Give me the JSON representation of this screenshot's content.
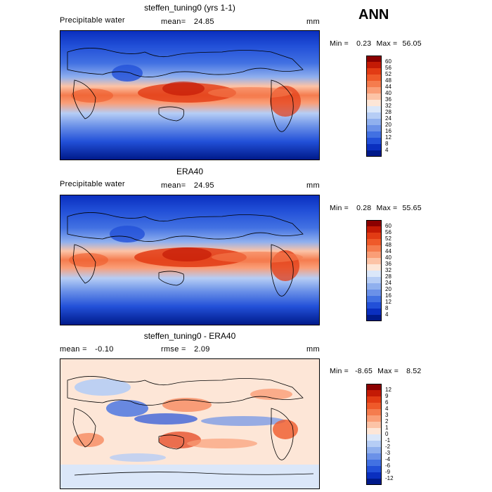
{
  "season": "ANN",
  "panels": [
    {
      "title": "steffen_tuning0 (yrs 1-1)",
      "left_label": "Precipitable water",
      "center_label": "mean=",
      "center_value": "24.85",
      "units": "mm",
      "min_label": "Min =",
      "min_value": "0.23",
      "max_label": "Max =",
      "max_value": "56.05",
      "colorbar": {
        "ticks": [
          "60",
          "56",
          "52",
          "48",
          "44",
          "40",
          "36",
          "32",
          "28",
          "24",
          "20",
          "16",
          "12",
          "8",
          "4"
        ],
        "colors": [
          "#8b0000",
          "#c41a05",
          "#e23b14",
          "#ef5a2a",
          "#f57c4e",
          "#fa9e77",
          "#fcc3a6",
          "#fde6d7",
          "#dbe7f9",
          "#b6cdf5",
          "#90b0ee",
          "#6b91e8",
          "#4271e2",
          "#2250d8",
          "#0a2fbf",
          "#001a8a"
        ]
      }
    },
    {
      "title": "ERA40",
      "left_label": "Precipitable water",
      "center_label": "mean=",
      "center_value": "24.95",
      "units": "mm",
      "min_label": "Min =",
      "min_value": "0.28",
      "max_label": "Max =",
      "max_value": "55.65",
      "colorbar": {
        "ticks": [
          "60",
          "56",
          "52",
          "48",
          "44",
          "40",
          "36",
          "32",
          "28",
          "24",
          "20",
          "16",
          "12",
          "8",
          "4"
        ],
        "colors": [
          "#8b0000",
          "#c41a05",
          "#e23b14",
          "#ef5a2a",
          "#f57c4e",
          "#fa9e77",
          "#fcc3a6",
          "#fde6d7",
          "#dbe7f9",
          "#b6cdf5",
          "#90b0ee",
          "#6b91e8",
          "#4271e2",
          "#2250d8",
          "#0a2fbf",
          "#001a8a"
        ]
      }
    },
    {
      "title": "steffen_tuning0 - ERA40",
      "left_label": "mean =",
      "left_value": "-0.10",
      "center_label": "rmse =",
      "center_value": "2.09",
      "units": "mm",
      "min_label": "Min =",
      "min_value": "-8.65",
      "max_label": "Max =",
      "max_value": "8.52",
      "colorbar": {
        "ticks": [
          "12",
          "9",
          "6",
          "4",
          "3",
          "2",
          "1",
          "0",
          "-1",
          "-2",
          "-3",
          "-4",
          "-6",
          "-9",
          "-12"
        ],
        "colors": [
          "#8b0000",
          "#c41a05",
          "#e23b14",
          "#ef5a2a",
          "#f57c4e",
          "#fa9e77",
          "#fcc3a6",
          "#fde6d7",
          "#dbe7f9",
          "#b6cdf5",
          "#90b0ee",
          "#6b91e8",
          "#4271e2",
          "#2250d8",
          "#0a2fbf",
          "#001a8a"
        ]
      }
    }
  ]
}
